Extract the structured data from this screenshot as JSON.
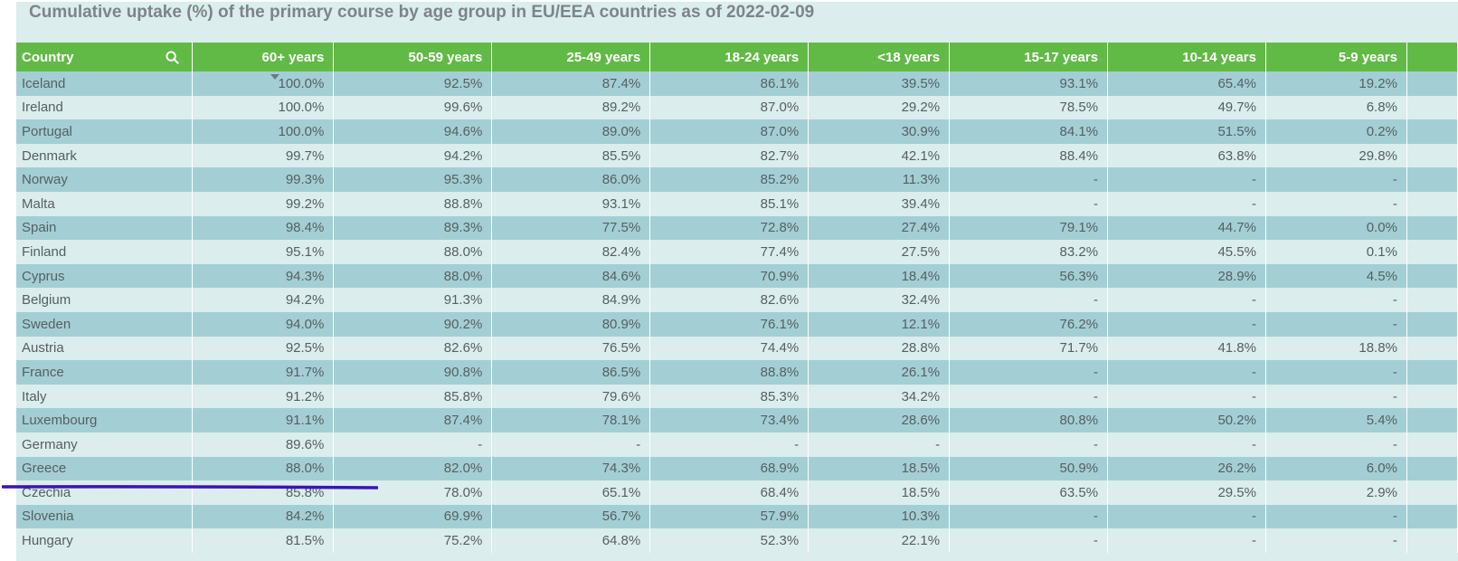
{
  "title": "Cumulative uptake (%) of the primary course by age group in EU/EEA countries as of 2022-02-09",
  "columns": [
    "Country",
    "60+ years",
    "50-59 years",
    "25-49 years",
    "18-24 years",
    "<18 years",
    "15-17 years",
    "10-14 years",
    "5-9 years"
  ],
  "rows": [
    [
      "Iceland",
      "100.0%",
      "92.5%",
      "87.4%",
      "86.1%",
      "39.5%",
      "93.1%",
      "65.4%",
      "19.2%"
    ],
    [
      "Ireland",
      "100.0%",
      "99.6%",
      "89.2%",
      "87.0%",
      "29.2%",
      "78.5%",
      "49.7%",
      "6.8%"
    ],
    [
      "Portugal",
      "100.0%",
      "94.6%",
      "89.0%",
      "87.0%",
      "30.9%",
      "84.1%",
      "51.5%",
      "0.2%"
    ],
    [
      "Denmark",
      "99.7%",
      "94.2%",
      "85.5%",
      "82.7%",
      "42.1%",
      "88.4%",
      "63.8%",
      "29.8%"
    ],
    [
      "Norway",
      "99.3%",
      "95.3%",
      "86.0%",
      "85.2%",
      "11.3%",
      "-",
      "-",
      "-"
    ],
    [
      "Malta",
      "99.2%",
      "88.8%",
      "93.1%",
      "85.1%",
      "39.4%",
      "-",
      "-",
      "-"
    ],
    [
      "Spain",
      "98.4%",
      "89.3%",
      "77.5%",
      "72.8%",
      "27.4%",
      "79.1%",
      "44.7%",
      "0.0%"
    ],
    [
      "Finland",
      "95.1%",
      "88.0%",
      "82.4%",
      "77.4%",
      "27.5%",
      "83.2%",
      "45.5%",
      "0.1%"
    ],
    [
      "Cyprus",
      "94.3%",
      "88.0%",
      "84.6%",
      "70.9%",
      "18.4%",
      "56.3%",
      "28.9%",
      "4.5%"
    ],
    [
      "Belgium",
      "94.2%",
      "91.3%",
      "84.9%",
      "82.6%",
      "32.4%",
      "-",
      "-",
      "-"
    ],
    [
      "Sweden",
      "94.0%",
      "90.2%",
      "80.9%",
      "76.1%",
      "12.1%",
      "76.2%",
      "-",
      "-"
    ],
    [
      "Austria",
      "92.5%",
      "82.6%",
      "76.5%",
      "74.4%",
      "28.8%",
      "71.7%",
      "41.8%",
      "18.8%"
    ],
    [
      "France",
      "91.7%",
      "90.8%",
      "86.5%",
      "88.8%",
      "26.1%",
      "-",
      "-",
      "-"
    ],
    [
      "Italy",
      "91.2%",
      "85.8%",
      "79.6%",
      "85.3%",
      "34.2%",
      "-",
      "-",
      "-"
    ],
    [
      "Luxembourg",
      "91.1%",
      "87.4%",
      "78.1%",
      "73.4%",
      "28.6%",
      "80.8%",
      "50.2%",
      "5.4%"
    ],
    [
      "Germany",
      "89.6%",
      "-",
      "-",
      "-",
      "-",
      "-",
      "-",
      "-"
    ],
    [
      "Greece",
      "88.0%",
      "82.0%",
      "74.3%",
      "68.9%",
      "18.5%",
      "50.9%",
      "26.2%",
      "6.0%"
    ],
    [
      "Czechia",
      "85.8%",
      "78.0%",
      "65.1%",
      "68.4%",
      "18.5%",
      "63.5%",
      "29.5%",
      "2.9%"
    ],
    [
      "Slovenia",
      "84.2%",
      "69.9%",
      "56.7%",
      "57.9%",
      "10.3%",
      "-",
      "-",
      "-"
    ],
    [
      "Hungary",
      "81.5%",
      "75.2%",
      "64.8%",
      "52.3%",
      "22.1%",
      "-",
      "-",
      "-"
    ]
  ],
  "icons": {
    "search": "search-icon",
    "sort": "sort-descending-icon"
  },
  "colors": {
    "header": "#62ba46",
    "row_dark": "#a3cfd4",
    "row_light": "#dbeded",
    "annotation": "#3a14b8"
  }
}
